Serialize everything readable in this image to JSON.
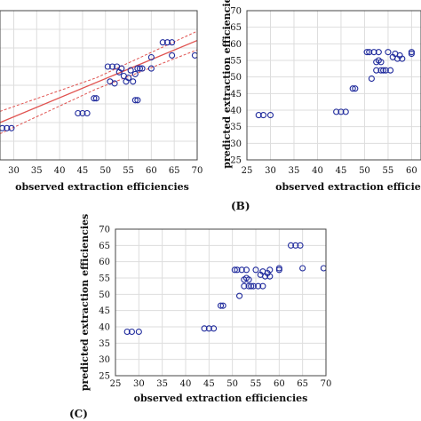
{
  "colors": {
    "marker": "#1f2a9c",
    "fit_line": "#e0524f",
    "confidence_band": "#e0524f",
    "axis": "#444444",
    "grid": "#dddddd"
  },
  "chart_data": [
    {
      "panel_label": "",
      "type": "scatter",
      "xlabel": "observed extraction efficiencies",
      "ylabel": "",
      "xlim": [
        27,
        70
      ],
      "ylim": [
        30,
        70
      ],
      "xticks": [
        30,
        35,
        40,
        45,
        50,
        55,
        60,
        65,
        70
      ],
      "yticks": [],
      "grid": true,
      "fit_line": {
        "x": [
          27,
          70
        ],
        "y": [
          40.0,
          62.0
        ]
      },
      "confidence_upper": {
        "x": [
          27,
          48,
          70
        ],
        "y": [
          43.0,
          52.0,
          64.5
        ]
      },
      "confidence_lower": {
        "x": [
          27,
          48,
          70
        ],
        "y": [
          37.0,
          49.0,
          59.5
        ]
      },
      "x": [
        27.5,
        28.5,
        29.5,
        44.0,
        45.0,
        46.0,
        47.5,
        48.0,
        50.5,
        51.0,
        51.5,
        52.0,
        52.5,
        53.0,
        53.5,
        54.0,
        54.5,
        55.0,
        55.5,
        56.0,
        56.5,
        57.0,
        57.5,
        58.0,
        56.5,
        57.0,
        60.0,
        60.0,
        62.5,
        63.5,
        64.5,
        64.5,
        69.5
      ],
      "y": [
        38.5,
        38.5,
        38.5,
        42.5,
        42.5,
        42.5,
        46.5,
        46.5,
        55.0,
        51.0,
        55.0,
        50.5,
        55.0,
        53.5,
        54.5,
        52.5,
        51.0,
        52.0,
        54.0,
        51.0,
        53.0,
        54.5,
        54.5,
        54.5,
        46.0,
        46.0,
        54.5,
        57.5,
        61.5,
        61.5,
        61.5,
        58.0,
        58.0
      ]
    },
    {
      "panel_label": "(B)",
      "type": "scatter",
      "xlabel": "observed extraction efficiencies",
      "ylabel": "predicted extraction efficiencies",
      "xlim": [
        25,
        62
      ],
      "ylim": [
        25,
        70
      ],
      "xticks": [
        25,
        30,
        35,
        40,
        45,
        50,
        55,
        60
      ],
      "yticks": [
        25,
        30,
        35,
        40,
        45,
        50,
        55,
        60,
        65,
        70
      ],
      "grid": true,
      "x": [
        27.5,
        28.5,
        30.0,
        44.0,
        45.0,
        46.0,
        47.5,
        48.0,
        50.5,
        51.0,
        51.5,
        52.0,
        52.5,
        52.5,
        53.0,
        53.5,
        53.0,
        53.5,
        54.0,
        54.5,
        55.0,
        55.5,
        56.0,
        56.5,
        57.0,
        57.5,
        58.0,
        60.0,
        60.0
      ],
      "y": [
        38.5,
        38.5,
        38.5,
        39.5,
        39.5,
        39.5,
        46.5,
        46.5,
        57.5,
        57.5,
        49.5,
        57.5,
        54.5,
        52.0,
        57.5,
        54.5,
        55.0,
        52.0,
        52.0,
        52.0,
        57.5,
        52.0,
        56.0,
        57.0,
        55.5,
        56.5,
        55.5,
        57.0,
        57.5
      ]
    },
    {
      "panel_label": "(C)",
      "type": "scatter",
      "xlabel": "observed extraction efficiencies",
      "ylabel": "predicted extraction efficiencies",
      "xlim": [
        25,
        70
      ],
      "ylim": [
        25,
        70
      ],
      "xticks": [
        25,
        30,
        35,
        40,
        45,
        50,
        55,
        60,
        65,
        70
      ],
      "yticks": [
        25,
        30,
        35,
        40,
        45,
        50,
        55,
        60,
        65,
        70
      ],
      "grid": true,
      "x": [
        27.5,
        28.5,
        30.0,
        44.0,
        45.0,
        46.0,
        47.5,
        48.0,
        50.5,
        51.0,
        51.5,
        52.0,
        52.5,
        52.5,
        53.0,
        53.5,
        53.0,
        53.5,
        54.0,
        54.5,
        55.0,
        55.5,
        56.0,
        56.5,
        56.5,
        57.0,
        57.5,
        58.0,
        58.0,
        60.0,
        60.0,
        62.5,
        63.5,
        64.5,
        65.0,
        69.5
      ],
      "y": [
        38.5,
        38.5,
        38.5,
        39.5,
        39.5,
        39.5,
        46.5,
        46.5,
        57.5,
        57.5,
        49.5,
        57.5,
        54.5,
        52.5,
        57.5,
        54.5,
        55.0,
        52.5,
        52.5,
        52.5,
        57.5,
        52.5,
        56.0,
        57.0,
        52.5,
        55.5,
        56.5,
        55.5,
        57.5,
        57.5,
        58.0,
        65.0,
        65.0,
        65.0,
        58.0,
        58.0
      ]
    }
  ]
}
